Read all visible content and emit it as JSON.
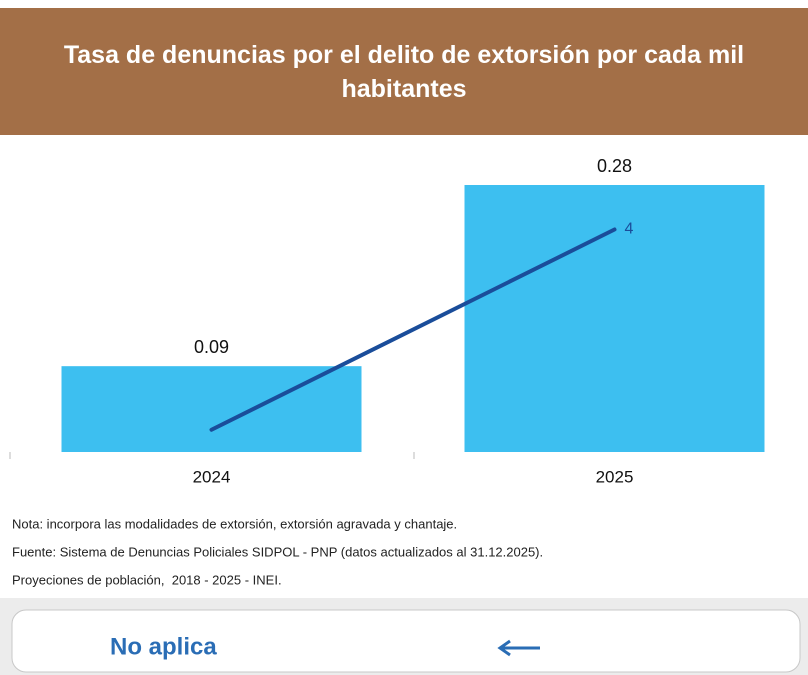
{
  "chart_data": {
    "type": "bar_line",
    "title": "Tasa de denuncias por el delito de extorsión por cada mil habitantes",
    "categories": [
      "2024",
      "2025"
    ],
    "series": [
      {
        "name": null,
        "type": "bar",
        "color": "#3dbff0",
        "values": [
          0.09,
          0.28
        ],
        "value_labels": [
          "0.09",
          "0.28"
        ]
      },
      {
        "name": null,
        "type": "line",
        "axis": "y2",
        "color": "#1a4d9a",
        "values": [
          0.4,
          4
        ],
        "value_labels": [
          null,
          "4"
        ]
      }
    ],
    "ylim": [
      0,
      0.28
    ],
    "y2lim": [
      0,
      4.8
    ]
  },
  "notes": [
    "Nota: incorpora las modalidades de extorsión, extorsión agravada y chantaje.",
    "Fuente: Sistema de Denuncias Policiales SIDPOL - PNP (datos actualizados al 31.12.2025).",
    "Proyeciones de población,  2018 - 2025 - INEI."
  ],
  "button": {
    "label": "No aplica"
  }
}
